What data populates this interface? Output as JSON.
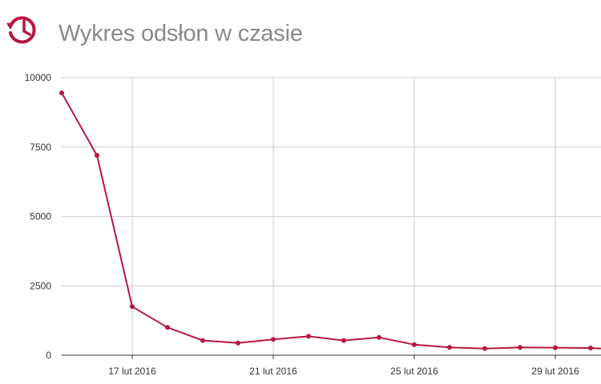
{
  "header": {
    "title": "Wykres odsłon w czasie",
    "icon": "history-clock-icon",
    "accent_color": "#b5173f"
  },
  "chart_data": {
    "type": "line",
    "title": "Wykres odsłon w czasie",
    "xlabel": "",
    "ylabel": "",
    "x_axis_type": "date",
    "x_tick_labels": [
      "17 lut 2016",
      "21 lut 2016",
      "25 lut 2016",
      "29 lut 2016"
    ],
    "x_tick_dates": [
      "2016-02-17",
      "2016-02-21",
      "2016-02-25",
      "2016-02-29"
    ],
    "xlim": [
      "2016-02-14",
      "2016-03-01"
    ],
    "y_tick_labels": [
      "0",
      "2500",
      "5000",
      "7500",
      "10000"
    ],
    "y_tick_values": [
      0,
      2500,
      5000,
      7500,
      10000
    ],
    "ylim": [
      0,
      10000
    ],
    "grid": true,
    "line_color": "#b5173f",
    "gridline_color": "#cccccc",
    "series": [
      {
        "x": [
          "2016-02-15",
          "2016-02-16",
          "2016-02-17",
          "2016-02-18",
          "2016-02-19",
          "2016-02-20",
          "2016-02-21",
          "2016-02-22",
          "2016-02-23",
          "2016-02-24",
          "2016-02-25",
          "2016-02-26",
          "2016-02-27",
          "2016-02-28",
          "2016-02-29",
          "2016-03-01",
          "2016-03-02"
        ],
        "values": [
          9450,
          7200,
          1750,
          1000,
          530,
          440,
          570,
          680,
          530,
          640,
          380,
          280,
          240,
          280,
          270,
          260,
          200
        ]
      }
    ]
  }
}
